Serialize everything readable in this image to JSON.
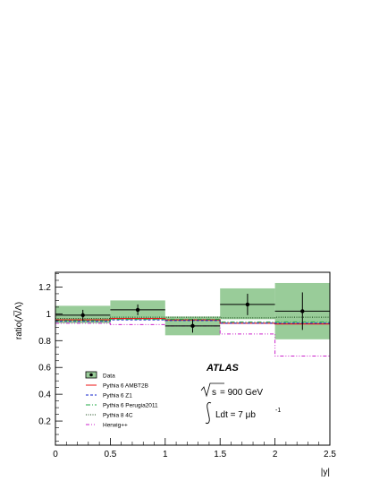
{
  "chart_data": {
    "type": "step",
    "xlabel": "|y|",
    "ylabel": "ratio(Λ̅/Λ)",
    "xlim": [
      0,
      2.5
    ],
    "ylim": [
      0.02,
      1.31
    ],
    "xticks": [
      0,
      0.5,
      1,
      1.5,
      2,
      2.5
    ],
    "xtick_labels": [
      "0",
      "0.5",
      "1",
      "1.5",
      "2",
      "2.5"
    ],
    "yticks": [
      0.2,
      0.4,
      0.6,
      0.8,
      1,
      1.2
    ],
    "ytick_labels": [
      "0.2",
      "0.4",
      "0.6",
      "0.8",
      "1",
      "1.2"
    ],
    "bin_edges": [
      0,
      0.5,
      1,
      1.5,
      2,
      2.5
    ],
    "data": {
      "name": "Data",
      "x": [
        0.25,
        0.75,
        1.25,
        1.75,
        2.25
      ],
      "y": [
        0.99,
        1.03,
        0.91,
        1.07,
        1.02
      ],
      "stat_err": [
        0.04,
        0.04,
        0.05,
        0.08,
        0.14
      ],
      "syst_band_low": [
        0.93,
        0.96,
        0.84,
        0.96,
        0.81
      ],
      "syst_band_high": [
        1.06,
        1.1,
        0.98,
        1.19,
        1.23
      ],
      "color": "#000000",
      "band_color": "#99cc99"
    },
    "series": [
      {
        "name": "Pythia 6 AMBT2B",
        "values": [
          0.955,
          0.965,
          0.955,
          0.93,
          0.925
        ],
        "color": "#ee1111",
        "style": "solid"
      },
      {
        "name": "Pythia 6 Z1",
        "values": [
          0.945,
          0.955,
          0.95,
          0.93,
          0.93
        ],
        "color": "#1122cc",
        "style": "dashed"
      },
      {
        "name": "Pythia 6 Perugia2011",
        "values": [
          0.95,
          0.96,
          0.96,
          0.94,
          0.94
        ],
        "color": "#22aa44",
        "style": "dashdot"
      },
      {
        "name": "Pythia 8 4C",
        "values": [
          0.965,
          0.975,
          0.975,
          0.97,
          0.975
        ],
        "color": "#114411",
        "style": "dotted"
      },
      {
        "name": "Herwig++",
        "values": [
          0.93,
          0.92,
          0.91,
          0.85,
          0.685
        ],
        "color": "#cc22cc",
        "style": "dashdotdot"
      }
    ],
    "legend": {
      "placement": "bottom-left",
      "entries": [
        "Data",
        "Pythia 6 AMBT2B",
        "Pythia 6 Z1",
        "Pythia 6 Perugia2011",
        "Pythia 8 4C",
        "Herwig++"
      ]
    },
    "annotations": {
      "experiment": "ATLAS",
      "energy_sqrt": "s",
      "energy_value": "= 900 GeV",
      "lumi_prefix": "Ldt = 7 μb",
      "lumi_exp": "-1"
    }
  }
}
